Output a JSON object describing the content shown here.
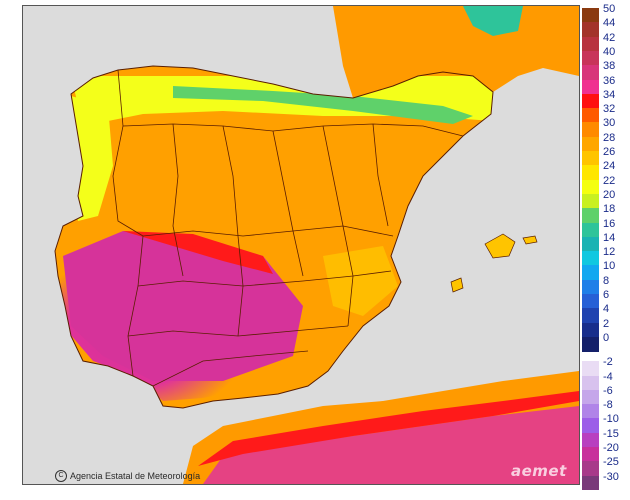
{
  "map": {
    "credit": "Agencia Estatal de Meteorología",
    "credit_icon": "copyright-icon",
    "logo": "aemet",
    "colors": {
      "sea": "#dcdcdc",
      "land_base": "#ff9a00",
      "borders": "#5a1e00",
      "hot_magenta": "#d6339a",
      "hot_red": "#ff1a1a",
      "cool_yellow": "#f4ff1a",
      "cool_green": "#5fd16a"
    }
  },
  "legend": {
    "positive": [
      {
        "label": "50",
        "color": "#8a3a10"
      },
      {
        "label": "44",
        "color": "#a3332a"
      },
      {
        "label": "42",
        "color": "#b8323f"
      },
      {
        "label": "40",
        "color": "#c8345a"
      },
      {
        "label": "38",
        "color": "#d8357a"
      },
      {
        "label": "36",
        "color": "#f03090"
      },
      {
        "label": "34",
        "color": "#ff1010"
      },
      {
        "label": "32",
        "color": "#ff5a00"
      },
      {
        "label": "30",
        "color": "#ff8a00"
      },
      {
        "label": "28",
        "color": "#ffa600"
      },
      {
        "label": "26",
        "color": "#ffc400"
      },
      {
        "label": "24",
        "color": "#ffe600"
      },
      {
        "label": "22",
        "color": "#f4ff10"
      },
      {
        "label": "20",
        "color": "#c8f020"
      },
      {
        "label": "18",
        "color": "#5fd16a"
      },
      {
        "label": "16",
        "color": "#2ec49a"
      },
      {
        "label": "14",
        "color": "#1ab3b3"
      },
      {
        "label": "12",
        "color": "#10c8e0"
      },
      {
        "label": "10",
        "color": "#12a8f0"
      },
      {
        "label": "8",
        "color": "#1f7fe8"
      },
      {
        "label": "6",
        "color": "#2660d6"
      },
      {
        "label": "4",
        "color": "#1f43b0"
      },
      {
        "label": "2",
        "color": "#182e8c"
      },
      {
        "label": "0",
        "color": "#14206a"
      }
    ],
    "negative": [
      {
        "label": "-2",
        "color": "#e9dcf4"
      },
      {
        "label": "-4",
        "color": "#d8c2ee"
      },
      {
        "label": "-6",
        "color": "#c5a6ea"
      },
      {
        "label": "-8",
        "color": "#b084e8"
      },
      {
        "label": "-10",
        "color": "#9c5ee8"
      },
      {
        "label": "-15",
        "color": "#b840c0"
      },
      {
        "label": "-20",
        "color": "#c8309c"
      },
      {
        "label": "-25",
        "color": "#a83a8a"
      },
      {
        "label": "-30",
        "color": "#7a3a7a"
      }
    ]
  }
}
